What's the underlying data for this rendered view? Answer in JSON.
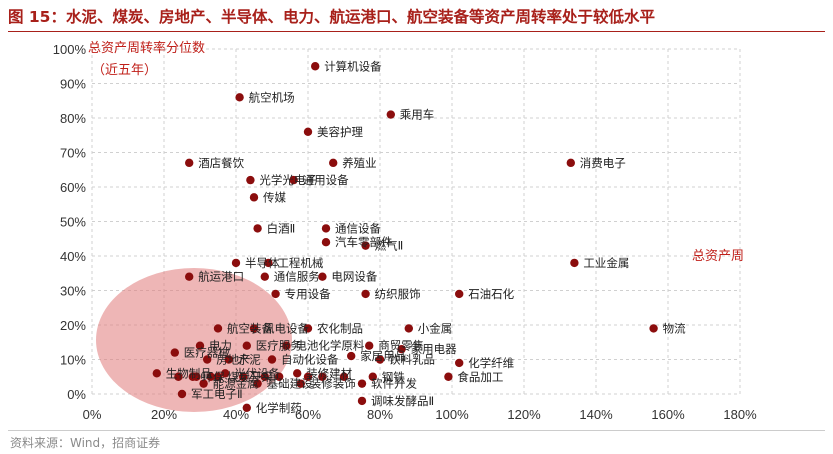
{
  "title": "图 15：水泥、煤炭、房地产、半导体、电力、航运港口、航空装备等资产周转率处于较低水平",
  "source": "资料来源：Wind，招商证券",
  "colors": {
    "marker": "#8b0d0d",
    "title": "#a8201a",
    "highlight": "#e07a7a",
    "annotation": "#c0201a"
  },
  "chart_data": {
    "type": "scatter",
    "title": "",
    "ylabel_lines": [
      "总资产周转率分位数",
      "（近五年）"
    ],
    "xlabel": "总资产周",
    "xlim": [
      0,
      180
    ],
    "ylim": [
      0,
      100
    ],
    "x_ticks": [
      "0%",
      "20%",
      "40%",
      "60%",
      "80%",
      "100%",
      "120%",
      "140%",
      "160%",
      "180%"
    ],
    "y_ticks": [
      "0%",
      "10%",
      "20%",
      "30%",
      "40%",
      "50%",
      "60%",
      "70%",
      "80%",
      "90%",
      "100%"
    ],
    "grid": "dashed",
    "points": [
      {
        "label": "计算机设备",
        "x": 62,
        "y": 95
      },
      {
        "label": "航空机场",
        "x": 41,
        "y": 86
      },
      {
        "label": "乘用车",
        "x": 83,
        "y": 81
      },
      {
        "label": "美容护理",
        "x": 60,
        "y": 76
      },
      {
        "label": "酒店餐饮",
        "x": 27,
        "y": 67
      },
      {
        "label": "养殖业",
        "x": 67,
        "y": 67
      },
      {
        "label": "消费电子",
        "x": 133,
        "y": 67
      },
      {
        "label": "光学光电子",
        "x": 44,
        "y": 62
      },
      {
        "label": "通用设备",
        "x": 56,
        "y": 62
      },
      {
        "label": "传媒",
        "x": 45,
        "y": 57
      },
      {
        "label": "白酒Ⅱ",
        "x": 46,
        "y": 48
      },
      {
        "label": "通信设备",
        "x": 65,
        "y": 48
      },
      {
        "label": "汽车零部件",
        "x": 65,
        "y": 44
      },
      {
        "label": "半导体",
        "x": 40,
        "y": 38
      },
      {
        "label": "工程机械",
        "x": 49,
        "y": 38
      },
      {
        "label": "燃气Ⅱ",
        "x": 76,
        "y": 43
      },
      {
        "label": "工业金属",
        "x": 134,
        "y": 38
      },
      {
        "label": "航运港口",
        "x": 27,
        "y": 34
      },
      {
        "label": "通信服务",
        "x": 48,
        "y": 34
      },
      {
        "label": "电网设备",
        "x": 64,
        "y": 34
      },
      {
        "label": "专用设备",
        "x": 51,
        "y": 29
      },
      {
        "label": "纺织服饰",
        "x": 76,
        "y": 29
      },
      {
        "label": "石油石化",
        "x": 102,
        "y": 29
      },
      {
        "label": "航空装备",
        "x": 35,
        "y": 19
      },
      {
        "label": "风电设备",
        "x": 45,
        "y": 19
      },
      {
        "label": "农化制品",
        "x": 60,
        "y": 19
      },
      {
        "label": "小金属",
        "x": 88,
        "y": 19
      },
      {
        "label": "物流",
        "x": 156,
        "y": 19
      },
      {
        "label": "电力",
        "x": 30,
        "y": 14
      },
      {
        "label": "医疗服务",
        "x": 43,
        "y": 14
      },
      {
        "label": "电池化学原料",
        "x": 54,
        "y": 14
      },
      {
        "label": "商贸零售",
        "x": 77,
        "y": 14
      },
      {
        "label": "家用电器",
        "x": 86,
        "y": 13
      },
      {
        "label": "医疗器械",
        "x": 23,
        "y": 12
      },
      {
        "label": "房地产",
        "x": 32,
        "y": 10
      },
      {
        "label": "水泥",
        "x": 38,
        "y": 10
      },
      {
        "label": "自动化设备",
        "x": 50,
        "y": 10
      },
      {
        "label": "家居用品",
        "x": 72,
        "y": 11
      },
      {
        "label": "饮料乳品",
        "x": 80,
        "y": 10
      },
      {
        "label": "化学纤维",
        "x": 102,
        "y": 9
      },
      {
        "label": "生物制品",
        "x": 18,
        "y": 6
      },
      {
        "label": "光伏设备",
        "x": 37,
        "y": 6
      },
      {
        "label": "装修建材",
        "x": 57,
        "y": 6
      },
      {
        "label": "钢铁",
        "x": 78,
        "y": 5
      },
      {
        "label": "食品加工",
        "x": 99,
        "y": 5
      },
      {
        "label": "软件开发",
        "x": 75,
        "y": 3
      },
      {
        "label": "能源金属",
        "x": 31,
        "y": 3
      },
      {
        "label": "基础建设",
        "x": 46,
        "y": 3
      },
      {
        "label": "装修装饰",
        "x": 58,
        "y": 3
      },
      {
        "label": "军工电子Ⅱ",
        "x": 25,
        "y": 0
      },
      {
        "label": "环保",
        "x": 28,
        "y": 5
      },
      {
        "label": "煤炭开采",
        "x": 35,
        "y": 5
      },
      {
        "label": "调味发酵品Ⅱ",
        "x": 75,
        "y": -2
      },
      {
        "label": "化学制药",
        "x": 43,
        "y": -4
      },
      {
        "label": "",
        "x": 24,
        "y": 5
      },
      {
        "label": "",
        "x": 29,
        "y": 5
      },
      {
        "label": "",
        "x": 33,
        "y": 5
      },
      {
        "label": "",
        "x": 42,
        "y": 5
      },
      {
        "label": "",
        "x": 48,
        "y": 5
      },
      {
        "label": "",
        "x": 52,
        "y": 5
      },
      {
        "label": "",
        "x": 60,
        "y": 5
      },
      {
        "label": "",
        "x": 64,
        "y": 5
      },
      {
        "label": "",
        "x": 70,
        "y": 5
      }
    ]
  }
}
